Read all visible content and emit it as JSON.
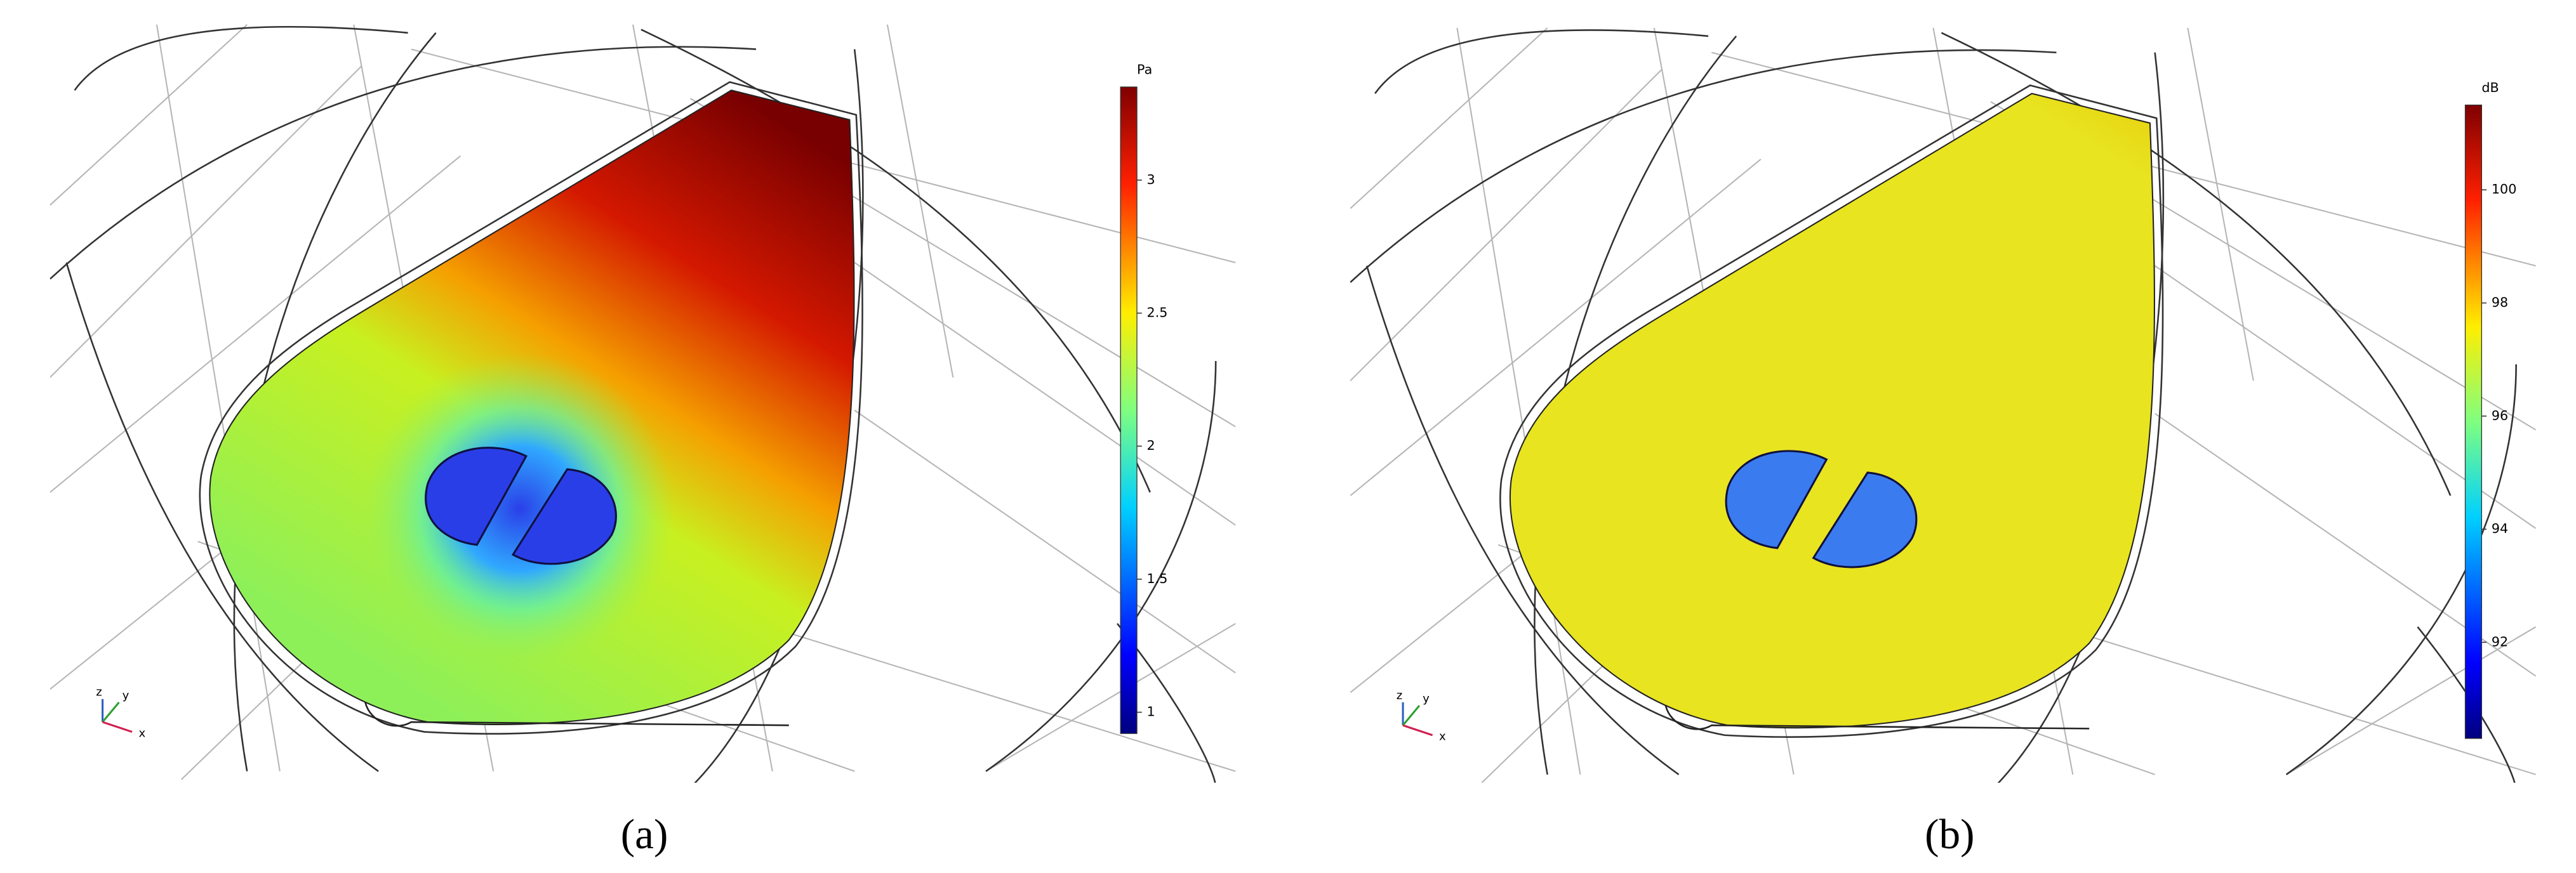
{
  "panels": [
    {
      "label": "(a)",
      "triad": [
        "z",
        "y",
        "x"
      ],
      "colorbar": {
        "unit": "Pa",
        "range": [
          0.92,
          3.35
        ],
        "ticks": [
          1,
          1.5,
          2,
          2.5,
          3
        ]
      }
    },
    {
      "label": "(b)",
      "triad": [
        "z",
        "y",
        "x"
      ],
      "colorbar": {
        "unit": "dB",
        "range": [
          90.3,
          101.5
        ],
        "ticks": [
          92,
          94,
          96,
          98,
          100
        ]
      }
    }
  ]
}
